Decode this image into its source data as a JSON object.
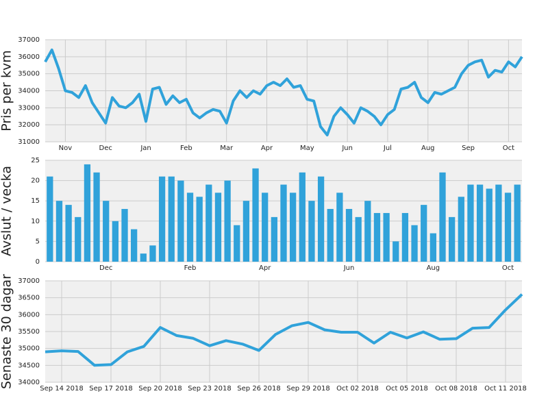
{
  "chart_data": [
    {
      "type": "line",
      "ylabel": "Pris per kvm",
      "color": "#30a2da",
      "categories": [
        null,
        null,
        null,
        "Nov",
        null,
        null,
        null,
        null,
        null,
        "Dec",
        null,
        null,
        null,
        null,
        null,
        "Jan",
        null,
        null,
        null,
        null,
        null,
        "Feb",
        null,
        null,
        null,
        null,
        null,
        "Mar",
        null,
        null,
        null,
        null,
        null,
        "Apr",
        null,
        null,
        null,
        null,
        null,
        "May",
        null,
        null,
        null,
        null,
        null,
        "Jun",
        null,
        null,
        null,
        null,
        null,
        "Jul",
        null,
        null,
        null,
        null,
        null,
        "Aug",
        null,
        null,
        null,
        null,
        null,
        "Sep",
        null,
        null,
        null,
        null,
        null,
        "Oct",
        null,
        null
      ],
      "values": [
        35700,
        36400,
        35300,
        34000,
        33900,
        33600,
        34300,
        33300,
        32700,
        32100,
        33600,
        33100,
        33000,
        33300,
        33800,
        32200,
        34100,
        34200,
        33200,
        33700,
        33300,
        33500,
        32700,
        32400,
        32700,
        32900,
        32800,
        32100,
        33400,
        34000,
        33600,
        34000,
        33800,
        34300,
        34500,
        34300,
        34700,
        34200,
        34300,
        33500,
        33400,
        31900,
        31400,
        32500,
        33000,
        32600,
        32100,
        33000,
        32800,
        32500,
        32000,
        32600,
        32900,
        34100,
        34200,
        34500,
        33600,
        33300,
        33900,
        33800,
        34000,
        34200,
        35000,
        35500,
        35700,
        35800,
        34800,
        35200,
        35100,
        35700,
        35400,
        36000
      ],
      "ylim": [
        31000,
        37000
      ],
      "yticks": [
        31000,
        32000,
        33000,
        34000,
        35000,
        36000,
        37000
      ],
      "grid": true
    },
    {
      "type": "bar",
      "ylabel": "Avslut / vecka",
      "color": "#30a2da",
      "categories": [
        null,
        null,
        null,
        null,
        null,
        null,
        "Dec",
        null,
        null,
        null,
        null,
        null,
        null,
        null,
        null,
        "Feb",
        null,
        null,
        null,
        null,
        null,
        null,
        null,
        "Apr",
        null,
        null,
        null,
        null,
        null,
        null,
        null,
        null,
        "Jun",
        null,
        null,
        null,
        null,
        null,
        null,
        null,
        null,
        "Aug",
        null,
        null,
        null,
        null,
        null,
        null,
        null,
        "Oct",
        null
      ],
      "values": [
        21,
        15,
        14,
        11,
        24,
        22,
        15,
        10,
        13,
        8,
        2,
        4,
        21,
        21,
        20,
        17,
        16,
        19,
        17,
        20,
        9,
        15,
        23,
        17,
        11,
        19,
        17,
        22,
        15,
        21,
        13,
        17,
        13,
        11,
        15,
        12,
        12,
        5,
        12,
        9,
        14,
        7,
        22,
        11,
        16,
        19,
        19,
        18,
        19,
        17,
        19
      ],
      "ylim": [
        0,
        25
      ],
      "yticks": [
        0,
        5,
        10,
        15,
        20,
        25
      ],
      "grid": true
    },
    {
      "type": "line",
      "ylabel": "Senaste 30 dagar",
      "color": "#30a2da",
      "categories": [
        null,
        "Sep 14 2018",
        null,
        null,
        "Sep 17 2018",
        null,
        null,
        "Sep 20 2018",
        null,
        null,
        "Sep 23 2018",
        null,
        null,
        "Sep 26 2018",
        null,
        null,
        "Sep 29 2018",
        null,
        null,
        "Oct 02 2018",
        null,
        null,
        "Oct 05 2018",
        null,
        null,
        "Oct 08 2018",
        null,
        null,
        "Oct 11 2018",
        null
      ],
      "values": [
        34900,
        34930,
        34910,
        34500,
        34520,
        34900,
        35060,
        35620,
        35380,
        35300,
        35080,
        35230,
        35130,
        34940,
        35410,
        35670,
        35770,
        35550,
        35480,
        35480,
        35160,
        35480,
        35310,
        35490,
        35270,
        35290,
        35600,
        35620,
        36140,
        36600
      ],
      "ylim": [
        34000,
        37000
      ],
      "yticks": [
        34000,
        34500,
        35000,
        35500,
        36000,
        36500,
        37000
      ],
      "grid": true
    }
  ]
}
